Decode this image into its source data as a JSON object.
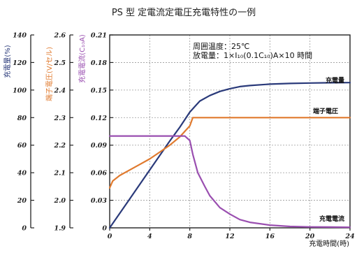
{
  "chart_data": {
    "type": "line",
    "title": "PS 型 定電流定電圧充電特性の一例",
    "annotation_lines": [
      "周囲温度：25℃",
      "放電量：1×I₁₀(0.1C₁₀)A×10 時間"
    ],
    "xlabel": "充電時間(時)",
    "xlim": [
      0,
      24
    ],
    "x_ticks": [
      0,
      4,
      8,
      12,
      16,
      20,
      24
    ],
    "grid": true,
    "y_axes": [
      {
        "id": "charge",
        "label": "充電量(%)",
        "color": "#2a3a7a",
        "range": [
          0,
          140
        ],
        "ticks": [
          0,
          20,
          40,
          60,
          80,
          100,
          120,
          140
        ]
      },
      {
        "id": "voltage",
        "label": "端子電圧(V/セル)",
        "color": "#e07a2e",
        "range": [
          1.9,
          2.6
        ],
        "ticks": [
          1.9,
          2.0,
          2.1,
          2.2,
          2.3,
          2.4,
          2.5,
          2.6
        ]
      },
      {
        "id": "current",
        "label": "充電電流(C₁₀A)",
        "color": "#9a4fb0",
        "range": [
          0,
          0.21
        ],
        "ticks": [
          0,
          0.03,
          0.06,
          0.09,
          0.12,
          0.15,
          0.18,
          0.21
        ]
      }
    ],
    "series": [
      {
        "name": "充電量",
        "axis": "charge",
        "color": "#2a3a7a",
        "x": [
          0,
          2,
          4,
          6,
          7,
          8,
          8.5,
          9,
          10,
          11,
          12,
          13,
          14,
          16,
          18,
          20,
          22,
          24
        ],
        "y": [
          0,
          21,
          42,
          63,
          73,
          84,
          88,
          92,
          96,
          99,
          101,
          102.5,
          103.3,
          104.3,
          104.8,
          105.1,
          105.3,
          105.4
        ]
      },
      {
        "name": "端子電圧",
        "axis": "voltage",
        "color": "#e07a2e",
        "x": [
          0,
          0.3,
          1,
          2,
          3,
          4,
          5,
          6,
          7,
          7.5,
          8,
          8.3,
          10,
          12,
          16,
          20,
          24
        ],
        "y": [
          2.045,
          2.07,
          2.09,
          2.11,
          2.13,
          2.15,
          2.175,
          2.2,
          2.23,
          2.25,
          2.27,
          2.3,
          2.3,
          2.3,
          2.3,
          2.3,
          2.3
        ]
      },
      {
        "name": "充電電流",
        "axis": "current",
        "color": "#9a4fb0",
        "x": [
          0,
          2,
          4,
          6,
          7.5,
          8.0,
          8.3,
          8.8,
          9.5,
          10,
          11,
          12,
          13,
          14,
          16,
          18,
          20,
          22,
          24
        ],
        "y": [
          0.1,
          0.1,
          0.1,
          0.1,
          0.1,
          0.095,
          0.08,
          0.06,
          0.045,
          0.035,
          0.022,
          0.015,
          0.009,
          0.006,
          0.003,
          0.0015,
          0.001,
          0.0008,
          0.0006
        ]
      }
    ]
  }
}
